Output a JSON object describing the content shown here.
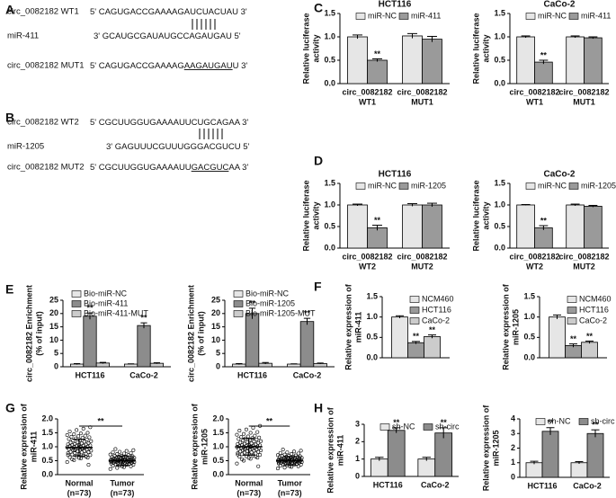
{
  "panels": [
    "A",
    "B",
    "C",
    "D",
    "E",
    "F",
    "G",
    "H"
  ],
  "sequences": [
    {
      "rows": [
        {
          "label": "circ_0082182 WT1",
          "segments": [
            {
              "text": "5' CAGUGACCGAAAAGAUCUACUAU 3'"
            }
          ]
        },
        {
          "label": "miR-411",
          "segments": [
            {
              "text": "3' GCAUGCGAUAUGCCAGAUGAU 5'"
            }
          ]
        },
        {
          "label": "circ_0082182 MUT1",
          "segments": [
            {
              "text": "5' CAGUGACCGAAAAG"
            },
            {
              "text": "AAGAUGAU",
              "underline": true
            },
            {
              "text": "U 3'"
            }
          ]
        }
      ]
    },
    {
      "rows": [
        {
          "label": "circ_0082182 WT2",
          "segments": [
            {
              "text": "5' CGCUUGGUGAAAAUUCUGCAGAA 3'"
            }
          ]
        },
        {
          "label": "miR-1205",
          "segments": [
            {
              "text": "3' GAGUUUCGUUUGGGACGUCU 5'"
            }
          ]
        },
        {
          "label": "circ_0082182 MUT2",
          "segments": [
            {
              "text": "5' CGCUUGGUGAAAAUU"
            },
            {
              "text": "GACGUC",
              "underline": true
            },
            {
              "text": "AA 3'"
            }
          ]
        }
      ]
    }
  ],
  "chart_data": [
    {
      "type": "bar",
      "title": "HCT116",
      "ylabel": [
        "Relative luciferase",
        "activity"
      ],
      "categories": [
        [
          "circ_0082182",
          "WT1"
        ],
        [
          "circ_0082182",
          "MUT1"
        ]
      ],
      "series": [
        {
          "name": "miR-NC",
          "color": "#e6e6e6",
          "values": [
            1.0,
            1.02
          ],
          "errors": [
            0.04,
            0.05
          ],
          "significance": [
            null,
            null
          ]
        },
        {
          "name": "miR-411",
          "color": "#9a9a9a",
          "values": [
            0.5,
            0.95
          ],
          "errors": [
            0.03,
            0.06
          ],
          "significance": [
            "**",
            null
          ]
        }
      ],
      "ylim": [
        0,
        1.5
      ],
      "yticks": [
        {
          "value": 0,
          "label": "0.0"
        },
        0.5,
        {
          "value": 1,
          "label": "1.0"
        },
        1.5
      ],
      "legend": "top"
    },
    {
      "type": "bar",
      "title": "CaCo-2",
      "ylabel": [
        "Relative luciferase",
        "activity"
      ],
      "categories": [
        [
          "circ_0082182",
          "WT1"
        ],
        [
          "circ_0082182",
          "MUT1"
        ]
      ],
      "series": [
        {
          "name": "miR-NC",
          "color": "#e6e6e6",
          "values": [
            1.0,
            1.0
          ],
          "errors": [
            0.02,
            0.02
          ],
          "significance": [
            null,
            null
          ]
        },
        {
          "name": "miR-411",
          "color": "#9a9a9a",
          "values": [
            0.46,
            0.98
          ],
          "errors": [
            0.04,
            0.02
          ],
          "significance": [
            "**",
            null
          ]
        }
      ],
      "ylim": [
        0,
        1.5
      ],
      "yticks": [
        {
          "value": 0,
          "label": "0.0"
        },
        0.5,
        {
          "value": 1,
          "label": "1.0"
        },
        1.5
      ],
      "legend": "top"
    },
    {
      "type": "bar",
      "title": "HCT116",
      "ylabel": [
        "Relative luciferase",
        "activity"
      ],
      "categories": [
        [
          "circ_0082182",
          "WT2"
        ],
        [
          "circ_0082182",
          "MUT2"
        ]
      ],
      "series": [
        {
          "name": "miR-NC",
          "color": "#e6e6e6",
          "values": [
            1.0,
            1.0
          ],
          "errors": [
            0.02,
            0.03
          ],
          "significance": [
            null,
            null
          ]
        },
        {
          "name": "miR-1205",
          "color": "#9a9a9a",
          "values": [
            0.47,
            1.0
          ],
          "errors": [
            0.06,
            0.04
          ],
          "significance": [
            "**",
            null
          ]
        }
      ],
      "ylim": [
        0,
        1.5
      ],
      "yticks": [
        {
          "value": 0,
          "label": "0.0"
        },
        0.5,
        {
          "value": 1,
          "label": "1.0"
        },
        1.5
      ],
      "legend": "top"
    },
    {
      "type": "bar",
      "title": "CaCo-2",
      "ylabel": [
        "Relative luciferase",
        "activity"
      ],
      "categories": [
        [
          "circ_0082182",
          "WT2"
        ],
        [
          "circ_0082182",
          "MUT2"
        ]
      ],
      "series": [
        {
          "name": "miR-NC",
          "color": "#e6e6e6",
          "values": [
            1.0,
            1.0
          ],
          "errors": [
            0.01,
            0.02
          ],
          "significance": [
            null,
            null
          ]
        },
        {
          "name": "miR-1205",
          "color": "#9a9a9a",
          "values": [
            0.47,
            0.97
          ],
          "errors": [
            0.05,
            0.02
          ],
          "significance": [
            "**",
            null
          ]
        }
      ],
      "ylim": [
        0,
        1.5
      ],
      "yticks": [
        {
          "value": 0,
          "label": "0.0"
        },
        0.5,
        {
          "value": 1,
          "label": "1.0"
        },
        1.5
      ],
      "legend": "top"
    },
    {
      "type": "bar",
      "ylabel": [
        "circ_0082182 Enrichment",
        "(% of input)"
      ],
      "categories": [
        [
          "HCT116"
        ],
        [
          "CaCo-2"
        ]
      ],
      "series": [
        {
          "name": "Bio-miR-NC",
          "color": "#e6e6e6",
          "values": [
            1,
            1
          ],
          "errors": [
            0.2,
            0.1
          ],
          "significance": [
            null,
            null
          ]
        },
        {
          "name": "Bio-miR-411",
          "color": "#8c8c8c",
          "values": [
            19,
            15.5
          ],
          "errors": [
            1.2,
            1.0
          ],
          "significance": [
            "**",
            "**"
          ]
        },
        {
          "name": "Bio-miR-411-MUT",
          "color": "#cccccc",
          "values": [
            1.4,
            1.3
          ],
          "errors": [
            0.25,
            0.2
          ],
          "significance": [
            null,
            null
          ]
        }
      ],
      "ylim": [
        0,
        25
      ],
      "yticks": [
        0,
        5,
        10,
        15,
        20,
        25
      ],
      "legend": "upper left"
    },
    {
      "type": "bar",
      "ylabel": [
        "circ_0082182 Enrichment",
        "(% of input)"
      ],
      "categories": [
        [
          "HCT116"
        ],
        [
          "CaCo-2"
        ]
      ],
      "series": [
        {
          "name": "Bio-miR-NC",
          "color": "#e6e6e6",
          "values": [
            1,
            1
          ],
          "errors": [
            0.2,
            0.1
          ],
          "significance": [
            null,
            null
          ]
        },
        {
          "name": "Bio-miR-1205",
          "color": "#8c8c8c",
          "values": [
            20,
            17
          ],
          "errors": [
            2.0,
            1.2
          ],
          "significance": [
            "**",
            "**"
          ]
        },
        {
          "name": "Bio-miR-1205-MUT",
          "color": "#cccccc",
          "values": [
            1.3,
            1.2
          ],
          "errors": [
            0.3,
            0.2
          ],
          "significance": [
            null,
            null
          ]
        }
      ],
      "ylim": [
        0,
        25
      ],
      "yticks": [
        0,
        5,
        10,
        15,
        20,
        25
      ],
      "legend": "upper left"
    },
    {
      "type": "bar",
      "ylabel": [
        "Relative expression of",
        "miR-411"
      ],
      "series": [
        {
          "name": "NCM460",
          "color": "#e6e6e6",
          "values": [
            1.0
          ],
          "errors": [
            0.03
          ],
          "significance": [
            null
          ]
        },
        {
          "name": "HCT116",
          "color": "#9a9a9a",
          "values": [
            0.37
          ],
          "errors": [
            0.03
          ],
          "significance": [
            "**"
          ]
        },
        {
          "name": "CaCo-2",
          "color": "#cccccc",
          "values": [
            0.52
          ],
          "errors": [
            0.04
          ],
          "significance": [
            "**"
          ]
        }
      ],
      "ylim": [
        0,
        1.5
      ],
      "yticks": [
        {
          "value": 0,
          "label": "0.0"
        },
        0.5,
        {
          "value": 1,
          "label": "1.0"
        },
        1.5
      ],
      "legend": "upper right"
    },
    {
      "type": "bar",
      "ylabel": [
        "Relative expression of",
        "miR-1205"
      ],
      "series": [
        {
          "name": "NCM460",
          "color": "#e6e6e6",
          "values": [
            1.0
          ],
          "errors": [
            0.05
          ],
          "significance": [
            null
          ]
        },
        {
          "name": "HCT116",
          "color": "#9a9a9a",
          "values": [
            0.3
          ],
          "errors": [
            0.04
          ],
          "significance": [
            "**"
          ]
        },
        {
          "name": "CaCo-2",
          "color": "#cccccc",
          "values": [
            0.38
          ],
          "errors": [
            0.03
          ],
          "significance": [
            "**"
          ]
        }
      ],
      "ylim": [
        0,
        1.5
      ],
      "yticks": [
        {
          "value": 0,
          "label": "0.0"
        },
        0.5,
        {
          "value": 1,
          "label": "1.0"
        },
        1.5
      ],
      "legend": "upper right"
    },
    {
      "type": "strip",
      "ylabel": [
        "Relative expression of",
        "miR-411"
      ],
      "categories": [
        [
          "Normal",
          "(n=73)"
        ],
        [
          "Tumor",
          "(n=73)"
        ]
      ],
      "values": [
        [
          0.45,
          0.52,
          0.58,
          0.61,
          0.63,
          0.66,
          0.68,
          0.7,
          0.72,
          0.74,
          0.75,
          0.77,
          0.78,
          0.8,
          0.81,
          0.82,
          0.84,
          0.85,
          0.86,
          0.88,
          0.89,
          0.9,
          0.91,
          0.92,
          0.93,
          0.94,
          0.95,
          0.96,
          0.97,
          0.98,
          0.99,
          1.0,
          1.01,
          1.02,
          1.03,
          1.04,
          1.05,
          1.06,
          1.07,
          1.08,
          1.09,
          1.1,
          1.12,
          1.13,
          1.15,
          1.16,
          1.18,
          1.2,
          1.22,
          1.24,
          1.26,
          1.28,
          1.3,
          1.32,
          1.34,
          1.36,
          1.38,
          1.4,
          1.42,
          1.45,
          1.48,
          1.5,
          1.55,
          1.6,
          1.65,
          1.7,
          0.55,
          0.6,
          0.65,
          0.7,
          0.87,
          0.95,
          0.35
        ],
        [
          0.2,
          0.24,
          0.27,
          0.3,
          0.32,
          0.34,
          0.35,
          0.36,
          0.37,
          0.38,
          0.39,
          0.4,
          0.41,
          0.42,
          0.42,
          0.43,
          0.44,
          0.44,
          0.45,
          0.45,
          0.46,
          0.46,
          0.47,
          0.47,
          0.48,
          0.48,
          0.49,
          0.49,
          0.5,
          0.5,
          0.5,
          0.51,
          0.51,
          0.52,
          0.52,
          0.53,
          0.53,
          0.54,
          0.54,
          0.55,
          0.55,
          0.56,
          0.56,
          0.57,
          0.58,
          0.58,
          0.59,
          0.6,
          0.6,
          0.61,
          0.62,
          0.63,
          0.64,
          0.65,
          0.66,
          0.67,
          0.68,
          0.7,
          0.72,
          0.74,
          0.76,
          0.78,
          0.8,
          0.82,
          0.85,
          0.88,
          0.92,
          0.3,
          0.38,
          0.45,
          0.5,
          0.55,
          0.62
        ]
      ],
      "mean": [
        0.97,
        0.5
      ],
      "sd": [
        0.3,
        0.17
      ],
      "significance": "**",
      "ylim": [
        0,
        2
      ],
      "yticks": [
        {
          "value": 0,
          "label": "0.0"
        },
        0.5,
        {
          "value": 1,
          "label": "1.0"
        },
        1.5,
        {
          "value": 2,
          "label": "2.0"
        }
      ]
    },
    {
      "type": "strip",
      "ylabel": [
        "Relative expression of",
        "miR-1205"
      ],
      "categories": [
        [
          "Normal",
          "(n=73)"
        ],
        [
          "Tumor",
          "(n=73)"
        ]
      ],
      "values": [
        [
          0.4,
          0.5,
          0.57,
          0.61,
          0.64,
          0.66,
          0.69,
          0.71,
          0.73,
          0.74,
          0.76,
          0.77,
          0.79,
          0.8,
          0.82,
          0.83,
          0.84,
          0.86,
          0.87,
          0.88,
          0.89,
          0.9,
          0.92,
          0.93,
          0.94,
          0.95,
          0.96,
          0.97,
          0.98,
          0.99,
          1.0,
          1.0,
          1.01,
          1.02,
          1.03,
          1.04,
          1.05,
          1.06,
          1.07,
          1.08,
          1.1,
          1.11,
          1.12,
          1.14,
          1.15,
          1.17,
          1.19,
          1.2,
          1.22,
          1.24,
          1.26,
          1.28,
          1.3,
          1.31,
          1.33,
          1.35,
          1.37,
          1.4,
          1.43,
          1.46,
          1.5,
          1.53,
          1.58,
          1.62,
          1.68,
          1.75,
          0.55,
          0.6,
          0.65,
          0.72,
          0.9,
          1.0,
          0.3
        ],
        [
          0.22,
          0.25,
          0.28,
          0.3,
          0.32,
          0.34,
          0.35,
          0.36,
          0.37,
          0.38,
          0.39,
          0.4,
          0.41,
          0.42,
          0.43,
          0.43,
          0.44,
          0.44,
          0.45,
          0.45,
          0.46,
          0.46,
          0.47,
          0.47,
          0.48,
          0.48,
          0.49,
          0.49,
          0.5,
          0.5,
          0.5,
          0.51,
          0.51,
          0.52,
          0.52,
          0.53,
          0.53,
          0.54,
          0.54,
          0.55,
          0.55,
          0.56,
          0.56,
          0.57,
          0.57,
          0.58,
          0.59,
          0.6,
          0.6,
          0.61,
          0.62,
          0.63,
          0.64,
          0.65,
          0.66,
          0.67,
          0.68,
          0.69,
          0.7,
          0.72,
          0.74,
          0.76,
          0.78,
          0.8,
          0.83,
          0.86,
          0.9,
          0.3,
          0.38,
          0.44,
          0.5,
          0.55,
          0.6
        ]
      ],
      "mean": [
        1.0,
        0.5
      ],
      "sd": [
        0.3,
        0.15
      ],
      "significance": "**",
      "ylim": [
        0,
        2
      ],
      "yticks": [
        {
          "value": 0,
          "label": "0.0"
        },
        0.5,
        {
          "value": 1,
          "label": "1.0"
        },
        1.5,
        {
          "value": 2,
          "label": "2.0"
        }
      ]
    },
    {
      "type": "bar",
      "ylabel": [
        "Relative expression of",
        "miR-411"
      ],
      "categories": [
        [
          "HCT116"
        ],
        [
          "CaCo-2"
        ]
      ],
      "series": [
        {
          "name": "sh-NC",
          "color": "#e6e6e6",
          "values": [
            1,
            1
          ],
          "errors": [
            0.1,
            0.1
          ],
          "significance": [
            null,
            null
          ]
        },
        {
          "name": "sh-circ",
          "color": "#8c8c8c",
          "values": [
            2.65,
            2.5
          ],
          "errors": [
            0.15,
            0.3
          ],
          "significance": [
            "**",
            "**"
          ]
        }
      ],
      "ylim": [
        0,
        3
      ],
      "yticks": [
        0,
        1,
        2,
        3
      ],
      "legend": "top"
    },
    {
      "type": "bar",
      "ylabel": [
        "Relative expression of",
        "miR-1205"
      ],
      "categories": [
        [
          "HCT116"
        ],
        [
          "CaCo-2"
        ]
      ],
      "series": [
        {
          "name": "sh-NC",
          "color": "#e6e6e6",
          "values": [
            1,
            1
          ],
          "errors": [
            0.1,
            0.08
          ],
          "significance": [
            null,
            null
          ]
        },
        {
          "name": "sh-circ",
          "color": "#8c8c8c",
          "values": [
            3.15,
            3.0
          ],
          "errors": [
            0.25,
            0.25
          ],
          "significance": [
            "**",
            "**"
          ]
        }
      ],
      "ylim": [
        0,
        4
      ],
      "yticks": [
        0,
        1,
        2,
        3,
        4
      ],
      "legend": "top"
    }
  ]
}
